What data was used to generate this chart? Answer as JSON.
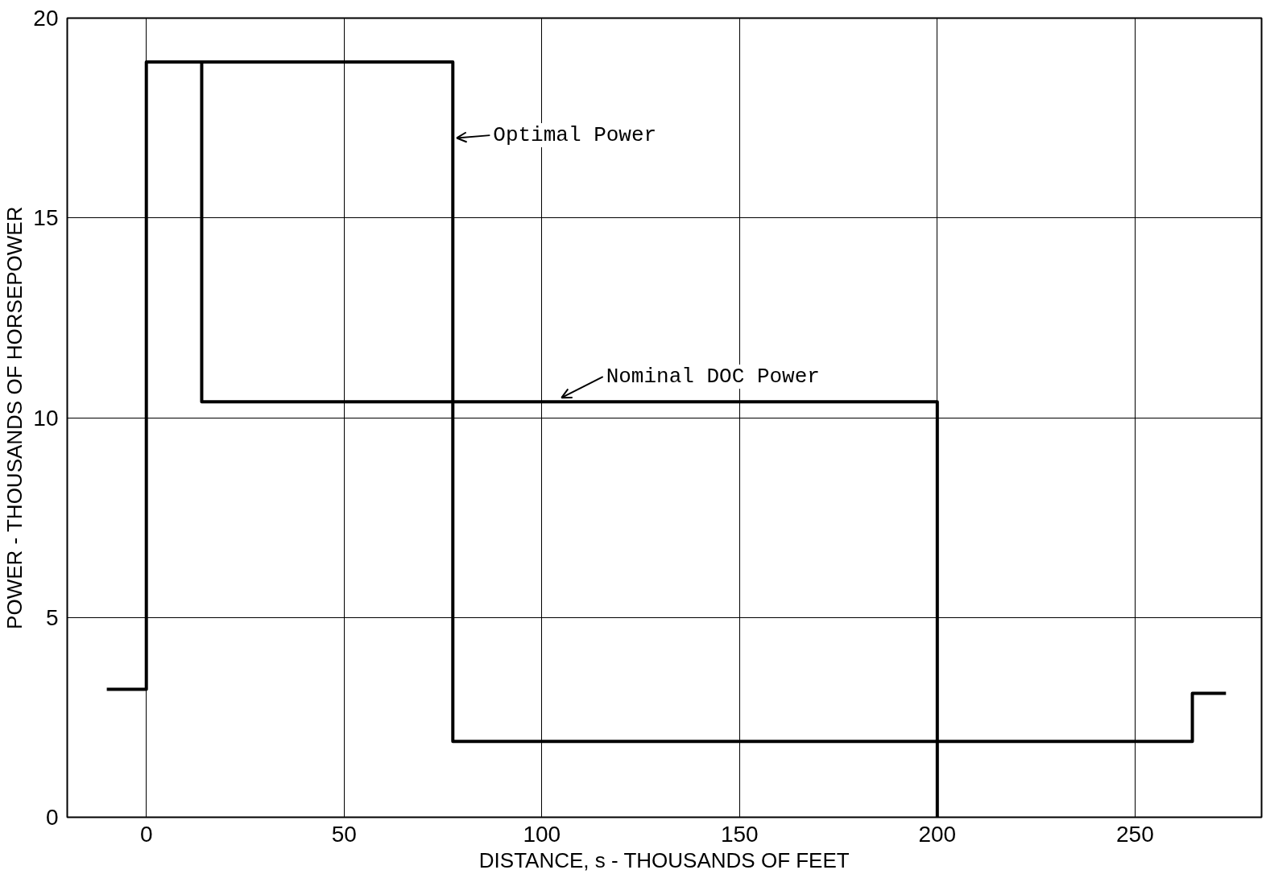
{
  "chart_data": {
    "type": "step",
    "xlabel": "DISTANCE, s - THOUSANDS OF FEET",
    "ylabel": "POWER - THOUSANDS OF HORSEPOWER",
    "series": [
      {
        "color": "#000000",
        "x": [
          -10,
          0,
          77.5,
          264.5,
          273
        ],
        "values": [
          3.2,
          18.9,
          1.9,
          3.1,
          3.1
        ]
      },
      {
        "color": "#000000",
        "x": [
          0,
          14,
          200,
          200
        ],
        "values": [
          18.9,
          10.4,
          10.4,
          0
        ]
      }
    ],
    "annotations": [
      {
        "text": "Optimal Power",
        "x": 77.5,
        "y": 16.9
      },
      {
        "text": "Nominal DOC Power",
        "x": 104,
        "y": 10.4
      }
    ],
    "xlim": [
      -20,
      282
    ],
    "ylim": [
      0,
      20
    ],
    "xticks": [
      0,
      50,
      100,
      150,
      200,
      250
    ],
    "yticks": [
      0,
      5,
      10,
      15,
      20
    ],
    "grid": true,
    "line_style": "solid"
  }
}
